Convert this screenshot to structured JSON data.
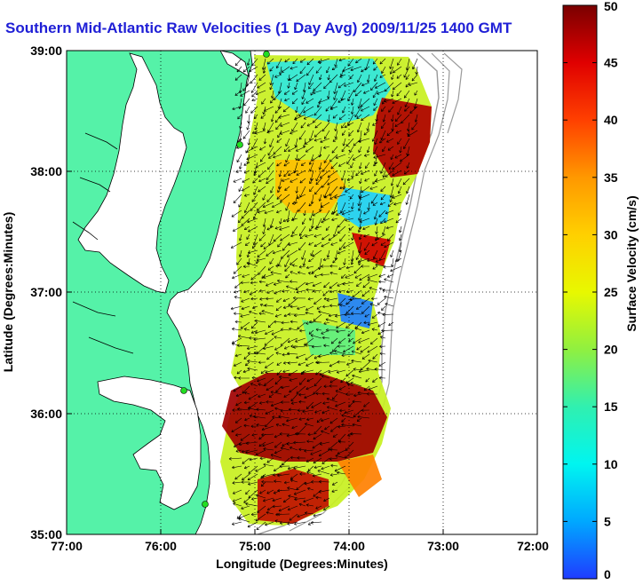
{
  "title": "Southern Mid-Atlantic Raw Velocities (1 Day Avg) 2009/11/25 1400 GMT",
  "map": {
    "xlabel": "Longitude (Degrees:Minutes)",
    "ylabel": "Latitude (Degrees:Minutes)",
    "lon_ticks": [
      "77:00",
      "76:00",
      "75:00",
      "74:00",
      "73:00",
      "72:00"
    ],
    "lat_ticks": [
      "39:00",
      "38:00",
      "37:00",
      "36:00",
      "35:00"
    ],
    "lon_range": [
      -77,
      -72
    ],
    "lat_range": [
      35,
      39
    ],
    "grid": true,
    "colors": {
      "land": "#55f2a8",
      "coast": "#000000",
      "shelf": "#9a9a9a",
      "station": "#22dd22"
    }
  },
  "colorbar": {
    "label": "Surface Velocity (cm/s)",
    "ticks": [
      "0",
      "5",
      "10",
      "15",
      "20",
      "25",
      "30",
      "35",
      "40",
      "45",
      "50"
    ],
    "range": [
      0,
      50
    ],
    "colors": [
      "#1f3cff",
      "#00c8ff",
      "#00f5e8",
      "#40f0a0",
      "#c8f020",
      "#ffff00",
      "#ffc000",
      "#ff7a00",
      "#ff2a00",
      "#d00000",
      "#7a0000"
    ]
  }
}
